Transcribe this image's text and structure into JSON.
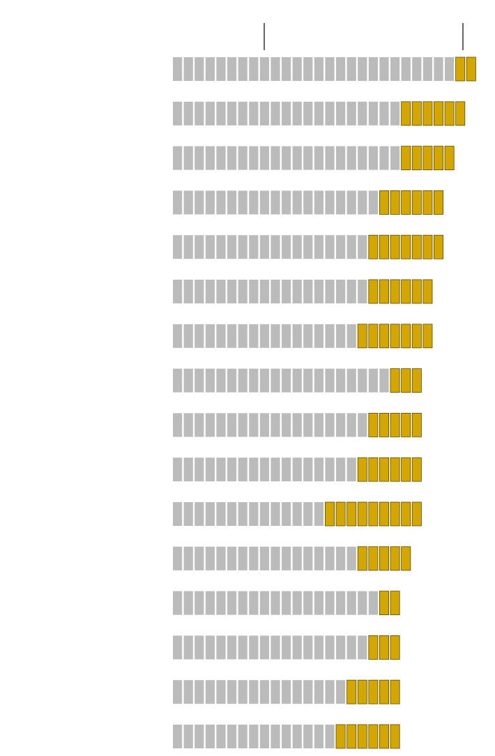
{
  "chart_data": {
    "type": "unit-bar",
    "series": [
      {
        "color": "#bbbbbb",
        "values": [
          26,
          21,
          21,
          19,
          18,
          18,
          17,
          20,
          18,
          17,
          14,
          17,
          19,
          18,
          16,
          15
        ]
      },
      {
        "color": "#d4a600",
        "values": [
          2,
          6,
          5,
          6,
          7,
          6,
          7,
          3,
          5,
          6,
          9,
          5,
          2,
          3,
          5,
          6
        ]
      }
    ]
  }
}
